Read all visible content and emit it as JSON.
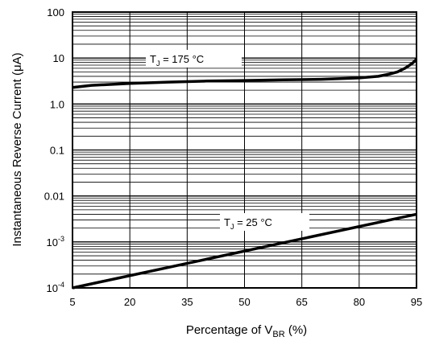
{
  "chart_data": {
    "type": "line",
    "xlabel": {
      "main": "Percentage of V",
      "sub": "BR",
      "tail": " (%)"
    },
    "ylabel": "Instantaneous Reverse Current (μA)",
    "xlim": [
      5,
      95
    ],
    "ylim": [
      0.0001,
      100
    ],
    "yscale": "log",
    "grid": true,
    "xticks": [
      "5",
      "20",
      "35",
      "50",
      "65",
      "80",
      "95"
    ],
    "xtick_values": [
      5,
      20,
      35,
      50,
      65,
      80,
      95
    ],
    "yticks": [
      {
        "value": 100,
        "label": "100"
      },
      {
        "value": 10,
        "label": "10"
      },
      {
        "value": 1,
        "label": "1.0"
      },
      {
        "value": 0.1,
        "label": "0.1"
      },
      {
        "value": 0.01,
        "label": "0.01"
      },
      {
        "value": 0.001,
        "label": "10",
        "sup": "-3"
      },
      {
        "value": 0.0001,
        "label": "10",
        "sup": "-4"
      }
    ],
    "series": [
      {
        "label": {
          "main": "T",
          "sub": "J",
          "tail": " = 175 °C"
        },
        "x": [
          5,
          10,
          20,
          30,
          40,
          50,
          60,
          70,
          80,
          85,
          88,
          90,
          92,
          93,
          94,
          95
        ],
        "y": [
          2.3,
          2.55,
          2.8,
          3.0,
          3.15,
          3.25,
          3.35,
          3.45,
          3.7,
          4.0,
          4.5,
          5.0,
          6.0,
          6.8,
          7.8,
          9.5
        ]
      },
      {
        "label": {
          "main": "T",
          "sub": "J",
          "tail": " = 25 °C"
        },
        "x": [
          5,
          95
        ],
        "y": [
          0.0001,
          0.004
        ]
      }
    ]
  }
}
